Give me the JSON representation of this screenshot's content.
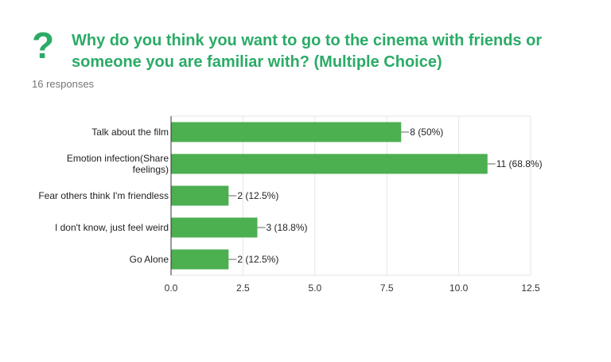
{
  "question": {
    "icon": "question-mark-icon",
    "title": "Why do you think you want to go to the cinema with friends or someone you are familiar with? (Multiple Choice)",
    "responses": "16 responses"
  },
  "colors": {
    "accent": "#2bab67",
    "bar": "#4caf50"
  },
  "chart_data": {
    "type": "bar",
    "orientation": "horizontal",
    "categories": [
      [
        "Talk about the film"
      ],
      [
        "Emotion infection(Share",
        "feelings)"
      ],
      [
        "Fear others think I'm friendless"
      ],
      [
        "I don't know, just feel weird"
      ],
      [
        "Go Alone"
      ]
    ],
    "values": [
      8,
      11,
      2,
      3,
      2
    ],
    "data_labels": [
      "8 (50%)",
      "11 (68.8%)",
      "2 (12.5%)",
      "3 (18.8%)",
      "2 (12.5%)"
    ],
    "x_ticks": [
      "0.0",
      "2.5",
      "5.0",
      "7.5",
      "10.0",
      "12.5"
    ],
    "xlim": [
      0,
      12.5
    ],
    "grid": true
  }
}
